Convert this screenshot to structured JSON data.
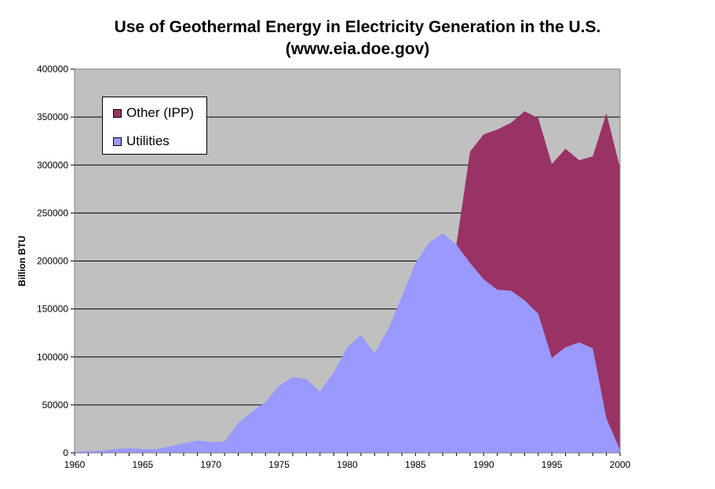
{
  "chart_data": {
    "type": "area",
    "stacked": true,
    "title": "Use of Geothermal Energy in Electricity Generation in the U.S.",
    "subtitle": "(www.eia.doe.gov)",
    "xlabel": "",
    "ylabel": "Billion BTU",
    "xlim": [
      1960,
      2000
    ],
    "ylim": [
      0,
      400000
    ],
    "xticks": [
      1960,
      1965,
      1970,
      1975,
      1980,
      1985,
      1990,
      1995,
      2000
    ],
    "yticks": [
      0,
      50000,
      100000,
      150000,
      200000,
      250000,
      300000,
      350000,
      400000
    ],
    "grid": "horizontal",
    "legend_position": "top-left",
    "background": "#c0c0c0",
    "x": [
      1960,
      1961,
      1962,
      1963,
      1964,
      1965,
      1966,
      1967,
      1968,
      1969,
      1970,
      1971,
      1972,
      1973,
      1974,
      1975,
      1976,
      1977,
      1978,
      1979,
      1980,
      1981,
      1982,
      1983,
      1984,
      1985,
      1986,
      1987,
      1988,
      1989,
      1990,
      1991,
      1992,
      1993,
      1994,
      1995,
      1996,
      1997,
      1998,
      1999,
      2000
    ],
    "series": [
      {
        "name": "Utilities",
        "color": "#9999ff",
        "values": [
          1000,
          2000,
          2000,
          4000,
          5000,
          4000,
          4000,
          7000,
          10000,
          13000,
          11000,
          12000,
          31000,
          43000,
          53000,
          70000,
          79000,
          77000,
          64000,
          84000,
          110000,
          123000,
          104000,
          129000,
          163000,
          198000,
          219000,
          229000,
          217000,
          198000,
          181000,
          170000,
          169000,
          159000,
          145000,
          99000,
          110000,
          115000,
          109000,
          36000,
          3000
        ]
      },
      {
        "name": "Other (IPP)",
        "color": "#993366",
        "values": [
          0,
          0,
          0,
          0,
          0,
          0,
          0,
          0,
          0,
          0,
          0,
          0,
          0,
          0,
          0,
          0,
          0,
          0,
          0,
          0,
          0,
          0,
          0,
          0,
          0,
          0,
          0,
          0,
          0,
          116000,
          151000,
          167000,
          175000,
          197000,
          204000,
          202000,
          207000,
          190000,
          200000,
          318000,
          294000
        ]
      }
    ]
  },
  "legend": {
    "items": [
      {
        "label": "Other (IPP)",
        "color": "#993366"
      },
      {
        "label": "Utilities",
        "color": "#9999ff"
      }
    ]
  }
}
